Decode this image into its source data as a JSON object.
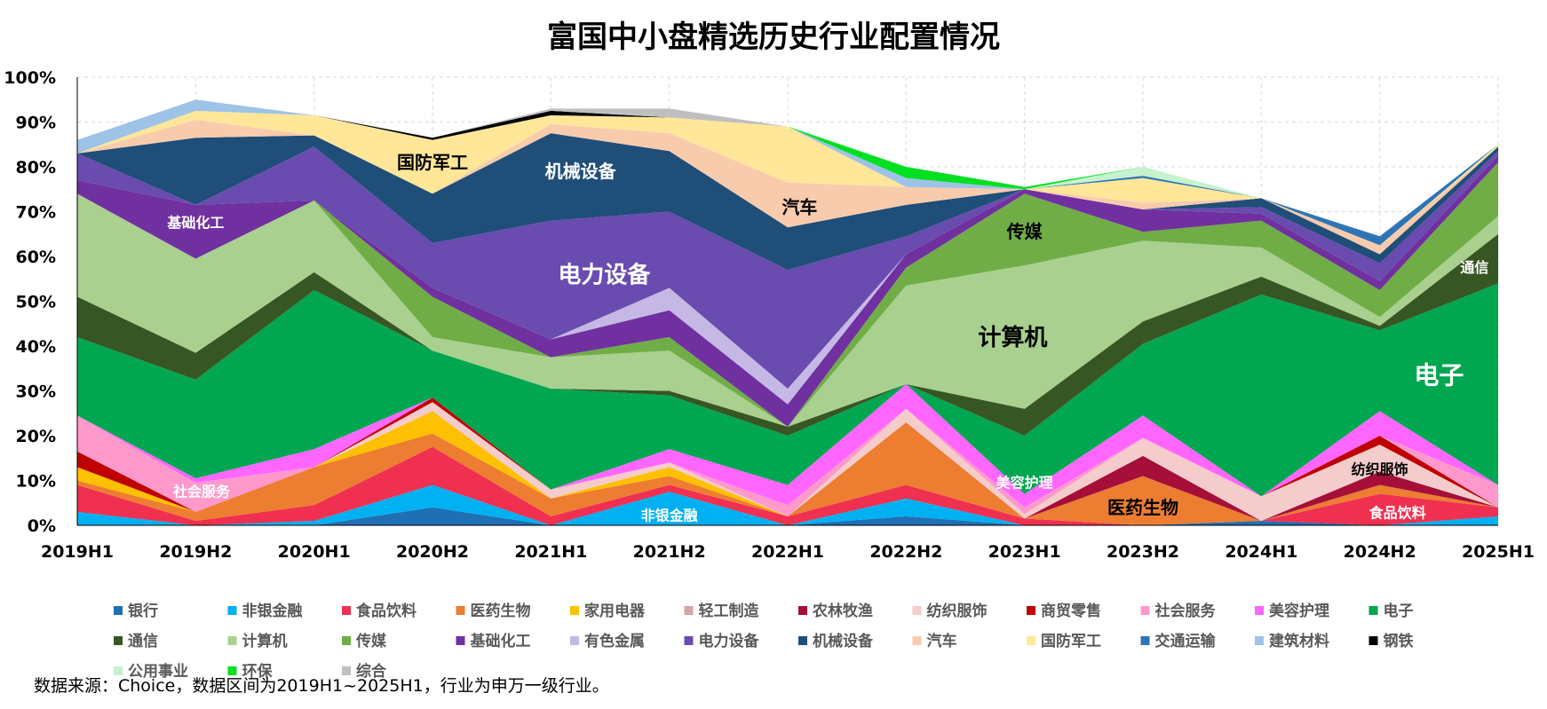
{
  "title": "富国中小盘精选历史行业配置情况",
  "source_note": "数据来源：Choice，数据区间为2019H1~2025H1，行业为申万一级行业。",
  "chart_data": {
    "type": "area",
    "stacked": true,
    "title": "富国中小盘精选历史行业配置情况",
    "xlabel": "",
    "ylabel": "",
    "x": [
      "2019H1",
      "2019H2",
      "2020H1",
      "2020H2",
      "2021H1",
      "2021H2",
      "2022H1",
      "2022H2",
      "2023H1",
      "2023H2",
      "2024H1",
      "2024H2",
      "2025H1"
    ],
    "ylim": [
      0,
      100
    ],
    "yticks": [
      "0%",
      "10%",
      "20%",
      "30%",
      "40%",
      "50%",
      "60%",
      "70%",
      "80%",
      "90%",
      "100%"
    ],
    "grid": true,
    "legend_position": "bottom",
    "series": [
      {
        "name": "银行",
        "color": "#1F6FB5",
        "values": [
          0,
          0,
          0,
          4,
          0,
          0,
          0,
          2,
          0,
          0,
          1,
          0,
          0
        ]
      },
      {
        "name": "非银金融",
        "color": "#00B0F0",
        "values": [
          3,
          0,
          1,
          5,
          0,
          7.5,
          0,
          4,
          0,
          0,
          0,
          0,
          2
        ]
      },
      {
        "name": "食品饮料",
        "color": "#F03050",
        "values": [
          6,
          1,
          3.5,
          8.5,
          2,
          1.5,
          2,
          3,
          1.5,
          0,
          0,
          7,
          2
        ]
      },
      {
        "name": "医药生物",
        "color": "#ED7D31",
        "values": [
          1,
          2,
          8.5,
          3,
          4,
          2,
          0,
          14,
          0,
          11,
          0,
          2,
          0
        ]
      },
      {
        "name": "家用电器",
        "color": "#FFC000",
        "values": [
          3,
          0,
          0,
          5,
          0,
          2,
          0,
          0,
          0,
          0,
          0,
          0,
          0
        ]
      },
      {
        "name": "轻工制造",
        "color": "#D4A5A5",
        "values": [
          0,
          0,
          0,
          0,
          0,
          0,
          0,
          0,
          0,
          0,
          0,
          0,
          0
        ]
      },
      {
        "name": "农林牧渔",
        "color": "#A50F3A",
        "values": [
          0,
          0,
          0,
          0,
          0,
          0,
          0,
          0,
          0,
          4.5,
          0,
          3,
          0
        ]
      },
      {
        "name": "纺织服饰",
        "color": "#F4CCCC",
        "values": [
          0,
          0,
          0,
          2,
          2,
          1,
          0,
          3,
          1,
          4,
          5.5,
          6,
          0
        ]
      },
      {
        "name": "商贸零售",
        "color": "#C00000",
        "values": [
          3.5,
          0,
          0,
          1,
          0,
          0,
          0,
          0,
          0,
          0,
          0,
          2,
          0
        ]
      },
      {
        "name": "社会服务",
        "color": "#FF99CC",
        "values": [
          8,
          6.5,
          0,
          0,
          0,
          0,
          2.5,
          0,
          1.5,
          0,
          0,
          0,
          5
        ]
      },
      {
        "name": "美容护理",
        "color": "#FF66FF",
        "values": [
          0,
          1,
          4,
          0,
          0,
          3,
          4.5,
          5.5,
          3,
          5,
          0,
          5.5,
          0
        ]
      },
      {
        "name": "电子",
        "color": "#00A650",
        "values": [
          17.5,
          22,
          35.5,
          10.5,
          22.5,
          12,
          11,
          0,
          13,
          16,
          45,
          18,
          45
        ]
      },
      {
        "name": "通信",
        "color": "#375623",
        "values": [
          9,
          6,
          4,
          0,
          0,
          1,
          2,
          0,
          6,
          5,
          4,
          1,
          11
        ]
      },
      {
        "name": "计算机",
        "color": "#A9D08E",
        "values": [
          23,
          21,
          16,
          3,
          7,
          9,
          0,
          22,
          32,
          18,
          6.5,
          2,
          4
        ]
      },
      {
        "name": "传媒",
        "color": "#70AD47",
        "values": [
          0,
          0,
          0,
          9,
          0,
          3,
          0,
          4,
          16,
          2,
          6,
          6,
          12
        ]
      },
      {
        "name": "基础化工",
        "color": "#7030A0",
        "values": [
          3,
          12,
          0,
          2,
          4,
          6,
          5,
          3,
          1,
          5,
          1.5,
          2,
          1.5
        ]
      },
      {
        "name": "有色金属",
        "color": "#C5B8E5",
        "values": [
          0,
          0,
          0,
          0,
          0,
          5,
          3.5,
          0,
          0,
          0,
          0,
          0,
          0
        ]
      },
      {
        "name": "电力设备",
        "color": "#6A4BAF",
        "values": [
          6,
          0,
          12,
          10,
          26.5,
          17,
          26.5,
          4,
          0,
          0,
          1.5,
          4,
          1
        ]
      },
      {
        "name": "机械设备",
        "color": "#1F4E79",
        "values": [
          0,
          15,
          2.5,
          11,
          19.5,
          13.5,
          9.5,
          7,
          0,
          0,
          2,
          2,
          1
        ]
      },
      {
        "name": "汽车",
        "color": "#F8CBAD",
        "values": [
          0,
          4,
          0,
          0,
          2,
          4,
          10,
          4,
          0,
          1.5,
          0,
          2,
          0
        ]
      },
      {
        "name": "国防军工",
        "color": "#FFE699",
        "values": [
          0,
          2,
          4.5,
          12,
          2,
          3.5,
          12.5,
          0,
          0,
          5.5,
          0,
          0,
          0.5
        ]
      },
      {
        "name": "交通运输",
        "color": "#2E75B6",
        "values": [
          0,
          0,
          0,
          0,
          0,
          0,
          0,
          0,
          0,
          0.5,
          0,
          2,
          0
        ]
      },
      {
        "name": "建筑材料",
        "color": "#9DC3E6",
        "values": [
          3,
          2.5,
          0,
          0,
          0,
          0,
          0,
          2,
          0,
          0,
          0,
          0,
          0
        ]
      },
      {
        "name": "钢铁",
        "color": "#000000",
        "values": [
          0,
          0,
          0,
          0.5,
          1,
          0,
          0,
          0,
          0,
          0,
          0,
          0,
          0
        ]
      },
      {
        "name": "公用事业",
        "color": "#C6F2CE",
        "values": [
          0,
          0,
          0,
          0,
          0,
          0,
          0,
          0,
          0,
          2,
          0,
          0,
          0
        ]
      },
      {
        "name": "环保",
        "color": "#00E020",
        "values": [
          0,
          0,
          0,
          0,
          0,
          0,
          0,
          2.5,
          0.5,
          0,
          0,
          0,
          0
        ]
      },
      {
        "name": "综合",
        "color": "#BFBFBF",
        "values": [
          0,
          0,
          0,
          0,
          0.5,
          2,
          0,
          0,
          0,
          0,
          0,
          0,
          0
        ]
      }
    ],
    "annotations": [
      {
        "text": "国防军工",
        "x": "2020H2",
        "y": 81,
        "size": 20,
        "color": "#000000"
      },
      {
        "text": "机械设备",
        "x": "2021H1",
        "y": 79,
        "size": 20,
        "color": "#ffffff",
        "dx": 0.25
      },
      {
        "text": "汽车",
        "x": "2022H1",
        "y": 71,
        "size": 20,
        "color": "#000000",
        "dx": 0.1
      },
      {
        "text": "基础化工",
        "x": "2019H2",
        "y": 67.5,
        "size": 16,
        "color": "#ffffff"
      },
      {
        "text": "电力设备",
        "x": "2021H1",
        "y": 56,
        "size": 26,
        "color": "#ffffff",
        "dx": 0.45
      },
      {
        "text": "传媒",
        "x": "2023H1",
        "y": 65.5,
        "size": 20,
        "color": "#000000"
      },
      {
        "text": "计算机",
        "x": "2022H2",
        "y": 42,
        "size": 26,
        "color": "#000000",
        "dx": 0.9
      },
      {
        "text": "通信",
        "x": "2025H1",
        "y": 57.5,
        "size": 16,
        "color": "#ffffff",
        "dx": -0.2
      },
      {
        "text": "电子",
        "x": "2024H2",
        "y": 33.5,
        "size": 28,
        "color": "#ffffff",
        "dx": 0.5
      },
      {
        "text": "社会服务",
        "x": "2019H2",
        "y": 7.5,
        "size": 16,
        "color": "#ffffff",
        "dx": 0.05
      },
      {
        "text": "美容护理",
        "x": "2023H1",
        "y": 9.5,
        "size": 16,
        "color": "#ffffff"
      },
      {
        "text": "纺织服饰",
        "x": "2024H2",
        "y": 12.5,
        "size": 16,
        "color": "#000000"
      },
      {
        "text": "医药生物",
        "x": "2023H2",
        "y": 4,
        "size": 20,
        "color": "#000000"
      },
      {
        "text": "非银金融",
        "x": "2021H2",
        "y": 2.2,
        "size": 16,
        "color": "#ffffff"
      },
      {
        "text": "食品饮料",
        "x": "2024H2",
        "y": 2.8,
        "size": 16,
        "color": "#ffffff",
        "dx": 0.15
      }
    ]
  }
}
